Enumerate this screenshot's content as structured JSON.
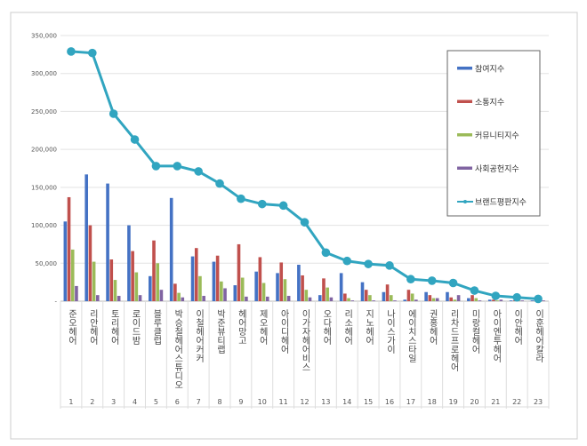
{
  "chart_data": {
    "type": "bar",
    "title": "",
    "xlabel": "",
    "ylabel": "",
    "ylim": [
      0,
      350000
    ],
    "yticks": [
      0,
      50000,
      100000,
      150000,
      200000,
      250000,
      300000,
      350000
    ],
    "ytick_labels": [
      "-",
      "50,000",
      "100,000",
      "150,000",
      "200,000",
      "250,000",
      "300,000",
      "350,000"
    ],
    "grid": true,
    "legend_position": "right",
    "categories": [
      "준오헤어",
      "리안헤어",
      "토리헤어",
      "로이드밤",
      "블루클럽",
      "박승철헤어스튜디오",
      "이철헤어커커",
      "박준뷰티랩",
      "헤어망고",
      "제오헤어",
      "아이디헤어",
      "이가자헤어비스",
      "오다헤어",
      "리소헤어",
      "지노헤어",
      "나이스가이",
      "에이치스타일",
      "권홍헤어",
      "리차드프로헤어",
      "미랑컬헤어",
      "아이엔투헤어",
      "이안헤어",
      "이훈헤어칼라"
    ],
    "ranks": [
      "1",
      "2",
      "3",
      "4",
      "5",
      "6",
      "7",
      "8",
      "9",
      "10",
      "11",
      "12",
      "13",
      "14",
      "15",
      "16",
      "17",
      "18",
      "19",
      "20",
      "21",
      "22",
      "23"
    ],
    "series": [
      {
        "name": "참여지수",
        "type": "bar",
        "color": "#4472c4",
        "values": [
          105000,
          167000,
          155000,
          100000,
          33000,
          136000,
          59000,
          52000,
          21000,
          39000,
          37000,
          48000,
          8000,
          37000,
          25000,
          12000,
          2000,
          12000,
          12000,
          4000,
          2000,
          1000,
          1000
        ]
      },
      {
        "name": "소통지수",
        "type": "bar",
        "color": "#c0504d",
        "values": [
          137000,
          100000,
          55000,
          66000,
          80000,
          23000,
          70000,
          60000,
          75000,
          58000,
          51000,
          34000,
          30000,
          10000,
          15000,
          22000,
          15000,
          8000,
          5000,
          8000,
          2000,
          1000,
          1000
        ]
      },
      {
        "name": "커뮤니티지수",
        "type": "bar",
        "color": "#9bbb59",
        "values": [
          68000,
          52000,
          28000,
          38000,
          50000,
          11000,
          33000,
          26000,
          31000,
          24000,
          29000,
          15000,
          18000,
          4000,
          8000,
          8000,
          10000,
          4000,
          2000,
          4000,
          1000,
          1000,
          0
        ]
      },
      {
        "name": "사회공헌지수",
        "type": "bar",
        "color": "#8064a2",
        "values": [
          20000,
          8000,
          7000,
          8000,
          15000,
          5000,
          7000,
          17000,
          6000,
          6000,
          7000,
          5000,
          5000,
          1000,
          1000,
          1000,
          2000,
          4000,
          8000,
          1000,
          2000,
          1000,
          1000
        ]
      },
      {
        "name": "브랜드평판지수",
        "type": "line",
        "color": "#31a5c0",
        "values": [
          329000,
          327000,
          247000,
          213000,
          178000,
          178000,
          171000,
          155000,
          135000,
          128000,
          126000,
          104000,
          64000,
          53000,
          49000,
          47000,
          29000,
          27000,
          24000,
          14000,
          7000,
          5000,
          3000
        ]
      }
    ]
  }
}
